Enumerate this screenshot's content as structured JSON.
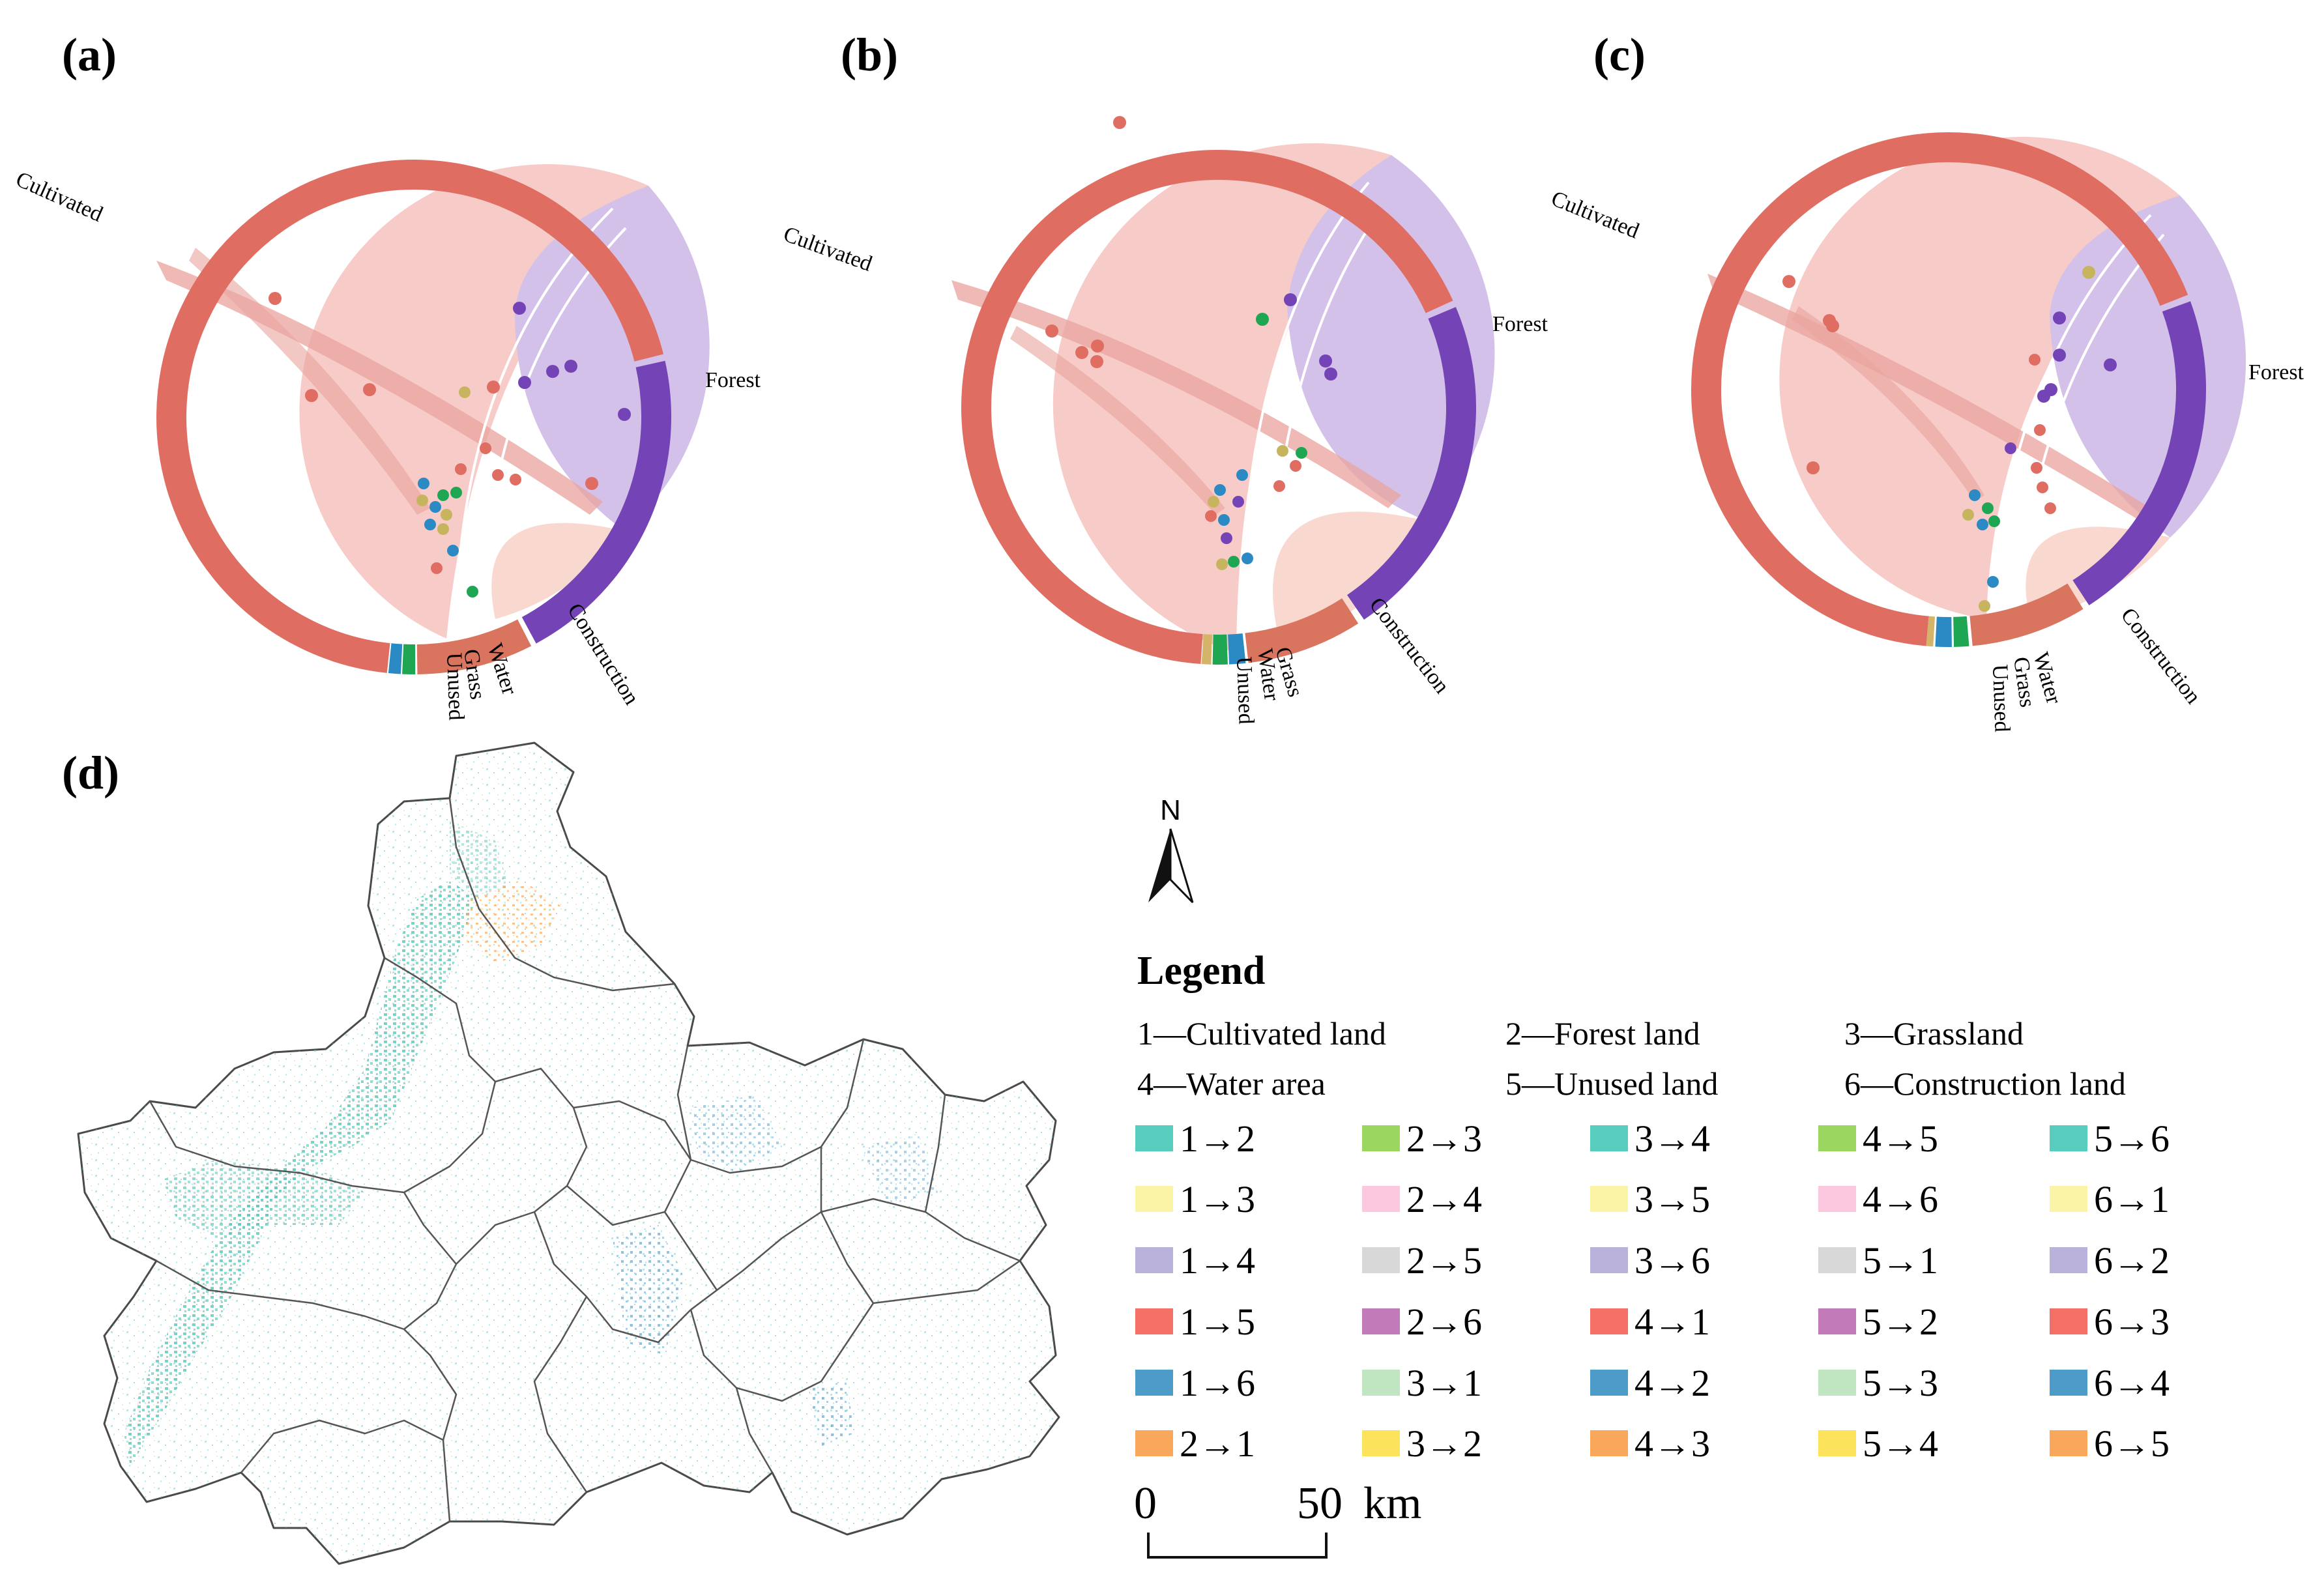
{
  "panels": {
    "a": {
      "label": "(a)"
    },
    "b": {
      "label": "(b)"
    },
    "c": {
      "label": "(c)"
    },
    "d": {
      "label": "(d)"
    }
  },
  "chords": [
    {
      "id": "a",
      "labels": {
        "cultivated": "Cultivated",
        "forest": "Forest",
        "construction": "Construction",
        "water": "Water",
        "grass": "Grass",
        "unused": "Unused"
      }
    },
    {
      "id": "b",
      "labels": {
        "cultivated": "Cultivated",
        "forest": "Forest",
        "construction": "Construction",
        "grass": "Grass",
        "water": "Water",
        "unused": "Unused"
      }
    },
    {
      "id": "c",
      "labels": {
        "cultivated": "Cultivated",
        "forest": "Forest",
        "construction": "Construction",
        "water": "Water",
        "grass": "Grass",
        "unused": "Unused"
      }
    }
  ],
  "colors": {
    "cultivated": "#e06d62",
    "cultivated_fill": "#f7cbc7",
    "forest": "#7444b6",
    "forest_fill": "#d3c1e9",
    "construction": "#d9755f",
    "construction_fill": "#f8d8cf",
    "water": "#1fa653",
    "grass": "#2b8ac4",
    "unused": "#d3b468",
    "map_border": "#4a4a4a"
  },
  "north": {
    "label": "N"
  },
  "legend": {
    "title": "Legend",
    "definitions": [
      "1—Cultivated land",
      "2—Forest land",
      "3—Grassland",
      "4—Water area",
      "5—Unused land",
      "6—Construction land"
    ],
    "items": [
      {
        "code": "1→2",
        "color": "#58cdbe"
      },
      {
        "code": "2→3",
        "color": "#9bd660"
      },
      {
        "code": "3→4",
        "color": "#58cdbe"
      },
      {
        "code": "4→5",
        "color": "#9bd660"
      },
      {
        "code": "5→6",
        "color": "#58cdbe"
      },
      {
        "code": "1→3",
        "color": "#fbf4a6"
      },
      {
        "code": "2→4",
        "color": "#fbc8e0"
      },
      {
        "code": "3→5",
        "color": "#fbf4a6"
      },
      {
        "code": "4→6",
        "color": "#fbc8e0"
      },
      {
        "code": "6→1",
        "color": "#fbf4a6"
      },
      {
        "code": "1→4",
        "color": "#bab2db"
      },
      {
        "code": "2→5",
        "color": "#d8d8d8"
      },
      {
        "code": "3→6",
        "color": "#bab2db"
      },
      {
        "code": "5→1",
        "color": "#d8d8d8"
      },
      {
        "code": "6→2",
        "color": "#bab2db"
      },
      {
        "code": "1→5",
        "color": "#f46f66"
      },
      {
        "code": "2→6",
        "color": "#c27ab8"
      },
      {
        "code": "4→1",
        "color": "#f46f66"
      },
      {
        "code": "5→2",
        "color": "#c27ab8"
      },
      {
        "code": "6→3",
        "color": "#f46f66"
      },
      {
        "code": "1→6",
        "color": "#4d9bc9"
      },
      {
        "code": "3→1",
        "color": "#bfe6c0"
      },
      {
        "code": "4→2",
        "color": "#4d9bc9"
      },
      {
        "code": "5→3",
        "color": "#bfe6c0"
      },
      {
        "code": "6→4",
        "color": "#4d9bc9"
      },
      {
        "code": "2→1",
        "color": "#f9a85b"
      },
      {
        "code": "3→2",
        "color": "#fbe45c"
      },
      {
        "code": "4→3",
        "color": "#f9a85b"
      },
      {
        "code": "5→4",
        "color": "#fbe45c"
      },
      {
        "code": "6→5",
        "color": "#f9a85b"
      }
    ]
  },
  "scale_bar": {
    "start": "0",
    "end": "50",
    "unit": "km"
  }
}
